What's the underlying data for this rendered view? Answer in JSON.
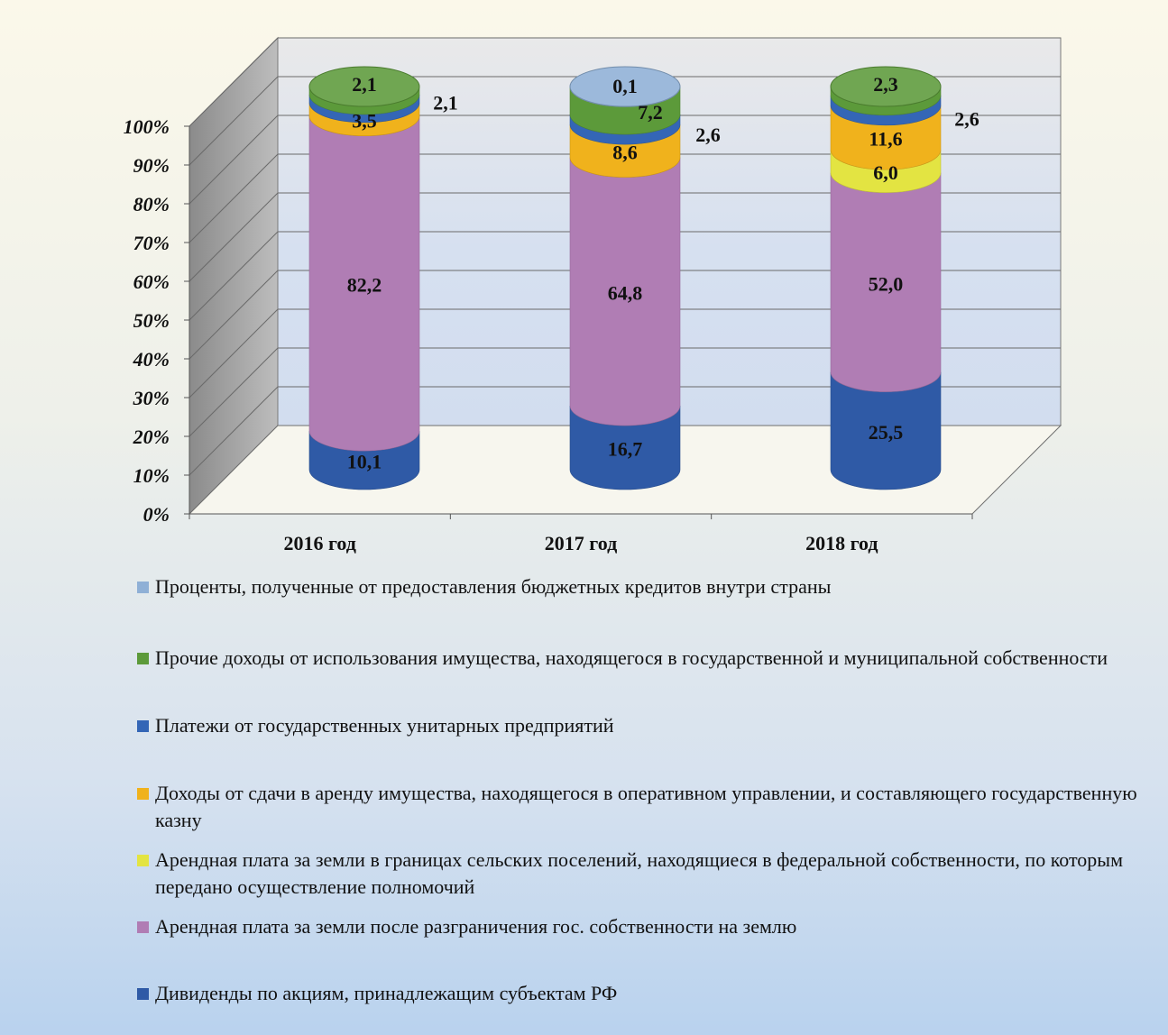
{
  "chart_data": {
    "type": "bar",
    "stacked": true,
    "style": "3d-cylinder",
    "categories": [
      "2016 год",
      "2017 год",
      "2018 год"
    ],
    "yticks": [
      "0%",
      "10%",
      "20%",
      "30%",
      "40%",
      "50%",
      "60%",
      "70%",
      "80%",
      "90%",
      "100%"
    ],
    "ylim": [
      0,
      100
    ],
    "grid": true,
    "legend_position": "bottom",
    "series": [
      {
        "name": "Дивиденды по акциям, принадлежащим субъектам РФ",
        "color": "#2f5aa6",
        "values": [
          10.1,
          16.7,
          25.5
        ],
        "labels": [
          "10,1",
          "16,7",
          "25,5"
        ]
      },
      {
        "name": "Арендная плата за земли после разграничения гос. собственности на землю",
        "color": "#b07db4",
        "values": [
          82.2,
          64.8,
          52.0
        ],
        "labels": [
          "82,2",
          "64,8",
          "52,0"
        ]
      },
      {
        "name": "Арендная плата за земли в границах сельских поселений, находящиеся в федеральной собственности, по которым передано осуществление полномочий",
        "color": "#e3e442",
        "values": [
          0,
          0,
          6.0
        ],
        "labels": [
          "",
          "",
          "6,0"
        ]
      },
      {
        "name": "Доходы от сдачи в аренду имущества, находящегося в оперативном управлении, и составляющего государственную казну",
        "color": "#f0b21c",
        "values": [
          3.5,
          8.6,
          11.6
        ],
        "labels": [
          "3,5",
          "8,6",
          "11,6"
        ]
      },
      {
        "name": "Платежи от государственных унитарных предприятий",
        "color": "#3466b6",
        "values": [
          2.1,
          2.6,
          2.6
        ],
        "labels": [
          "2,1",
          "2,6",
          "2,6"
        ]
      },
      {
        "name": "Прочие доходы от использования имущества, находящегося в государственной и муниципальной собственности",
        "color": "#5c9a3a",
        "values": [
          2.1,
          7.2,
          2.3
        ],
        "labels": [
          "2,1",
          "7,2",
          "2,3"
        ]
      },
      {
        "name": "Проценты, полученные от предоставления бюджетных кредитов внутри страны",
        "color": "#8fb0d6",
        "values": [
          0,
          0.1,
          0
        ],
        "labels": [
          "",
          "0,1",
          ""
        ]
      }
    ]
  },
  "legend": {
    "items": [
      {
        "label": "Проценты, полученные от предоставления бюджетных кредитов внутри страны",
        "color": "#8fb0d6"
      },
      {
        "label": "Прочие доходы от использования имущества, находящегося в государственной и муниципальной собственности",
        "color": "#5c9a3a"
      },
      {
        "label": "Платежи от государственных унитарных предприятий",
        "color": "#3466b6"
      },
      {
        "label": "Доходы от сдачи в аренду имущества, находящегося в оперативном управлении, и составляющего государственную казну",
        "color": "#f0b21c"
      },
      {
        "label": "Арендная плата за земли в границах сельских поселений, находящиеся в федеральной собственности, по которым передано осуществление полномочий",
        "color": "#e3e442"
      },
      {
        "label": "Арендная плата за земли после разграничения гос. собственности на землю",
        "color": "#b07db4"
      },
      {
        "label": "Дивиденды по акциям, принадлежащим субъектам РФ",
        "color": "#2f5aa6"
      }
    ]
  }
}
